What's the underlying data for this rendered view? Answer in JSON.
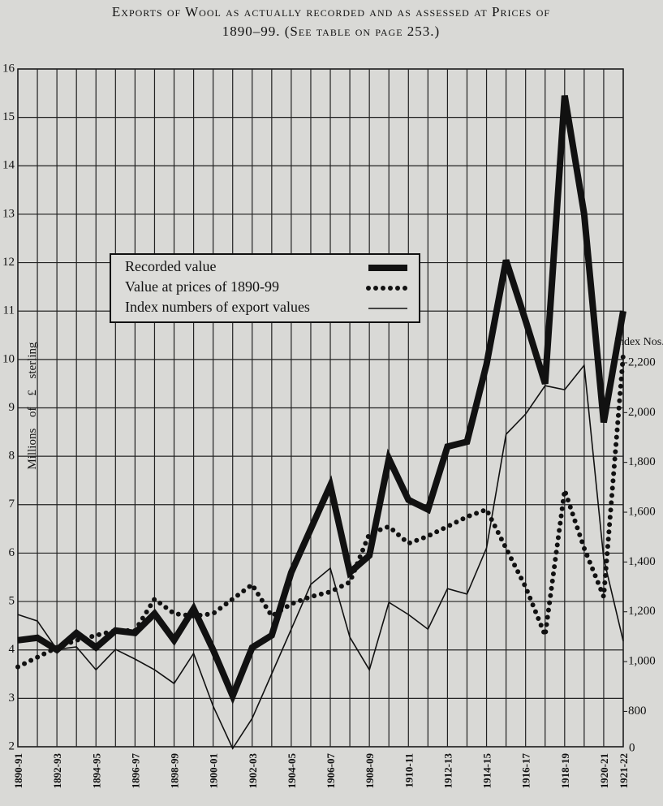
{
  "chart_data": {
    "type": "line",
    "title": "Exports of Wool as actually recorded and as assessed at Prices of",
    "subtitle": "1890–99. (See table on page 253.)",
    "y_label": "Millions of £ sterling",
    "y2_label": "Index Nos.",
    "y2_break_label": "0",
    "categories": [
      "1890-91",
      null,
      "1892-93",
      null,
      "1894-95",
      null,
      "1896-97",
      null,
      "1898-99",
      null,
      "1900-01",
      null,
      "1902-03",
      null,
      "1904-05",
      null,
      "1906-07",
      null,
      "1908-09",
      null,
      "1910-11",
      null,
      "1912-13",
      null,
      "1914-15",
      null,
      "1916-17",
      null,
      "1918-19",
      null,
      "1920-21",
      "1921-22"
    ],
    "series": [
      {
        "name": "Recorded value",
        "color": "#111111",
        "style": "thick",
        "values": [
          4.2,
          4.25,
          4.0,
          4.35,
          4.05,
          4.4,
          4.35,
          4.75,
          4.2,
          4.85,
          4.0,
          3.05,
          4.05,
          4.3,
          5.6,
          6.5,
          7.4,
          5.6,
          5.95,
          7.95,
          7.1,
          6.9,
          8.2,
          8.3,
          9.9,
          12.05,
          10.8,
          9.5,
          15.45,
          13.0,
          8.7,
          11.0
        ]
      },
      {
        "name": "Value at prices of 1890-99",
        "color": "#111111",
        "style": "dotted",
        "values": [
          3.65,
          3.85,
          4.05,
          4.2,
          4.3,
          4.4,
          4.4,
          5.05,
          4.75,
          4.7,
          4.75,
          5.05,
          5.35,
          4.7,
          4.95,
          5.1,
          5.2,
          5.4,
          6.4,
          6.55,
          6.2,
          6.35,
          6.55,
          6.75,
          6.9,
          6.1,
          5.3,
          4.3,
          7.3,
          6.1,
          5.1,
          10.1
        ]
      },
      {
        "name": "Index numbers of export values",
        "color": "#111111",
        "style": "thin",
        "axis": "y2",
        "values": [
          1189,
          1163,
          1049,
          1059,
          967,
          1049,
          1010,
          967,
          912,
          1033,
          821,
          651,
          772,
          951,
          1130,
          1310,
          1375,
          1098,
          967,
          1238,
          1189,
          1130,
          1293,
          1271,
          1456,
          1913,
          1994,
          2108,
          2092,
          2190,
          1414,
          1082
        ]
      }
    ],
    "ylim": [
      2,
      16
    ],
    "yticks": [
      2,
      3,
      4,
      5,
      6,
      7,
      8,
      9,
      10,
      11,
      12,
      13,
      14,
      15,
      16
    ],
    "y2lim": [
      658,
      3380
    ],
    "y2ticks": [
      800,
      {
        "value": 1000,
        "label": "1,000"
      },
      {
        "value": 1200,
        "label": "1,200"
      },
      {
        "value": 1400,
        "label": "1,400"
      },
      {
        "value": 1600,
        "label": "1,600"
      },
      {
        "value": 1800,
        "label": "1,800"
      },
      {
        "value": 2000,
        "label": "2,000"
      },
      {
        "value": 2200,
        "label": "2,200"
      }
    ],
    "grid": true
  }
}
